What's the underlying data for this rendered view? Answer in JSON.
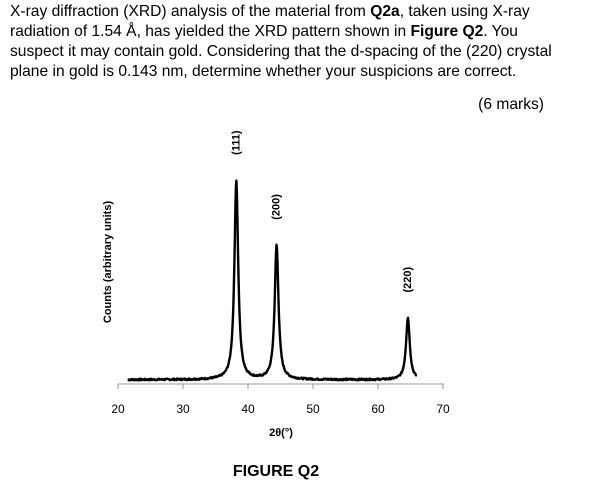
{
  "question": {
    "p1": "X-ray diffraction (XRD) analysis of the material from ",
    "ref_q2a": "Q2a",
    "p2": ", taken using X-ray radiation of 1.54 Å, has yielded the XRD pattern shown in ",
    "ref_figure": "Figure Q2",
    "p3": ". You suspect it may contain gold. Considering that the d-spacing of the (220) crystal plane in gold is 0.143 nm, determine whether your suspicions are correct."
  },
  "marks": "(6 marks)",
  "figure_caption": "FIGURE Q2",
  "chart_data": {
    "type": "line",
    "xlabel": "2θ(°)",
    "ylabel": "Counts (arbitrary units)",
    "xlim": [
      20,
      70
    ],
    "xticks": [
      "20",
      "30",
      "40",
      "50",
      "60",
      "70"
    ],
    "baseline": 0.02,
    "peaks": [
      {
        "label": "(111)",
        "x": 38.2,
        "y": 0.95
      },
      {
        "label": "(200)",
        "x": 44.4,
        "y": 0.65
      },
      {
        "label": "(220)",
        "x": 64.6,
        "y": 0.31
      }
    ],
    "line_color": "#000000"
  }
}
